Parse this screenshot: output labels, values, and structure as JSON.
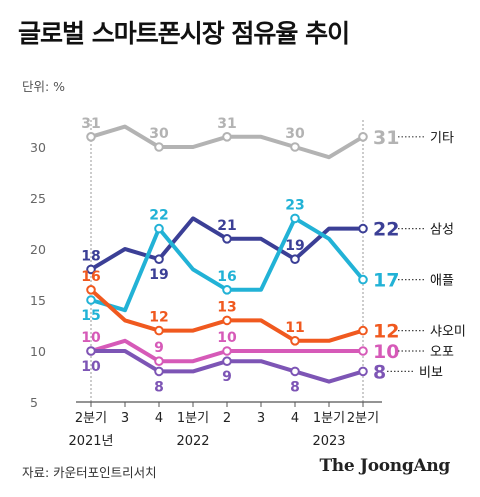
{
  "title": "글로벌 스마트폰시장 점유율 추이",
  "unit_label": "단위: %",
  "source": "자료: 카운터포인트리서치",
  "brand": "The JoongAng",
  "colors": {
    "gray": "#b3b3b3",
    "navy": "#3b3f96",
    "sky": "#22b2d6",
    "orange": "#f0591f",
    "magenta": "#d65ab8",
    "purple": "#7d55b5",
    "axis": "#555555",
    "grid": "#cccccc"
  },
  "chart_data": {
    "type": "line",
    "ylim": [
      5,
      32
    ],
    "y_ticks": [
      5,
      10,
      15,
      20,
      25,
      30
    ],
    "x_tick_labels": [
      "2분기",
      "3",
      "4",
      "1분기",
      "2",
      "3",
      "4",
      "1분기",
      "2분기"
    ],
    "x_tick_positions": [
      1,
      2,
      3,
      4,
      5,
      6,
      7,
      8,
      9
    ],
    "x_year_labels": [
      {
        "x": 1,
        "label": "2021년"
      },
      {
        "x": 4,
        "label": "2022"
      },
      {
        "x": 8,
        "label": "2023"
      }
    ],
    "x": [
      1,
      1.5,
      2,
      2.5,
      3,
      3.5,
      4,
      4.5,
      5,
      5.5,
      6,
      6.5,
      7,
      7.5,
      8,
      8.5,
      9
    ],
    "series": [
      {
        "name": "기타",
        "color_key": "gray",
        "values": [
          31,
          32,
          30,
          30,
          31,
          31,
          30,
          29,
          31
        ],
        "x": [
          1,
          2,
          3,
          4,
          5,
          6,
          7,
          8,
          9
        ],
        "labels": [
          {
            "i": 0,
            "text": "31",
            "pos": "above"
          },
          {
            "i": 2,
            "text": "30",
            "pos": "above"
          },
          {
            "i": 4,
            "text": "31",
            "pos": "above"
          },
          {
            "i": 6,
            "text": "30",
            "pos": "above"
          }
        ]
      },
      {
        "name": "삼성",
        "color_key": "navy",
        "values": [
          18,
          20,
          19,
          23,
          21,
          21,
          19,
          22,
          22
        ],
        "x": [
          1,
          2,
          3,
          4,
          5,
          6,
          7,
          8,
          9
        ],
        "labels": [
          {
            "i": 0,
            "text": "18",
            "pos": "above"
          },
          {
            "i": 2,
            "text": "19",
            "pos": "below"
          },
          {
            "i": 4,
            "text": "21",
            "pos": "above"
          },
          {
            "i": 6,
            "text": "19",
            "pos": "above"
          }
        ]
      },
      {
        "name": "애플",
        "color_key": "sky",
        "values": [
          15,
          14,
          22,
          18,
          16,
          16,
          23,
          21,
          17
        ],
        "x": [
          1,
          2,
          3,
          4,
          5,
          6,
          7,
          8,
          9
        ],
        "labels": [
          {
            "i": 0,
            "text": "15",
            "pos": "below"
          },
          {
            "i": 2,
            "text": "22",
            "pos": "above"
          },
          {
            "i": 4,
            "text": "16",
            "pos": "above"
          },
          {
            "i": 6,
            "text": "23",
            "pos": "above"
          }
        ]
      },
      {
        "name": "샤오미",
        "color_key": "orange",
        "values": [
          16,
          13,
          12,
          12,
          13,
          13,
          11,
          11,
          12
        ],
        "x": [
          1,
          2,
          3,
          4,
          5,
          6,
          7,
          8,
          9
        ],
        "labels": [
          {
            "i": 0,
            "text": "16",
            "pos": "above"
          },
          {
            "i": 2,
            "text": "12",
            "pos": "above"
          },
          {
            "i": 4,
            "text": "13",
            "pos": "above"
          },
          {
            "i": 6,
            "text": "11",
            "pos": "above"
          }
        ]
      },
      {
        "name": "오포",
        "color_key": "magenta",
        "values": [
          10,
          11,
          9,
          9,
          10,
          10,
          10,
          10,
          10
        ],
        "x": [
          1,
          2,
          3,
          4,
          5,
          6,
          7,
          8,
          9
        ],
        "labels": [
          {
            "i": 0,
            "text": "10",
            "pos": "above"
          },
          {
            "i": 2,
            "text": "9",
            "pos": "above"
          },
          {
            "i": 4,
            "text": "10",
            "pos": "above"
          }
        ]
      },
      {
        "name": "비보",
        "color_key": "purple",
        "values": [
          10,
          10,
          8,
          8,
          9,
          9,
          8,
          7,
          8
        ],
        "x": [
          1,
          2,
          3,
          4,
          5,
          6,
          7,
          8,
          9
        ],
        "labels": [
          {
            "i": 0,
            "text": "10",
            "pos": "below"
          },
          {
            "i": 2,
            "text": "8",
            "pos": "below"
          },
          {
            "i": 4,
            "text": "9",
            "pos": "below"
          },
          {
            "i": 6,
            "text": "8",
            "pos": "below"
          }
        ]
      }
    ],
    "end_labels": [
      {
        "series": "기타",
        "value": "31",
        "name": "기타",
        "color_key": "gray"
      },
      {
        "series": "삼성",
        "value": "22",
        "name": "삼성",
        "color_key": "navy"
      },
      {
        "series": "애플",
        "value": "17",
        "name": "애플",
        "color_key": "sky"
      },
      {
        "series": "샤오미",
        "value": "12",
        "name": "샤오미",
        "color_key": "orange"
      },
      {
        "series": "오포",
        "value": "10",
        "name": "오포",
        "color_key": "magenta"
      },
      {
        "series": "비보",
        "value": "8",
        "name": "비보",
        "color_key": "purple"
      }
    ]
  }
}
